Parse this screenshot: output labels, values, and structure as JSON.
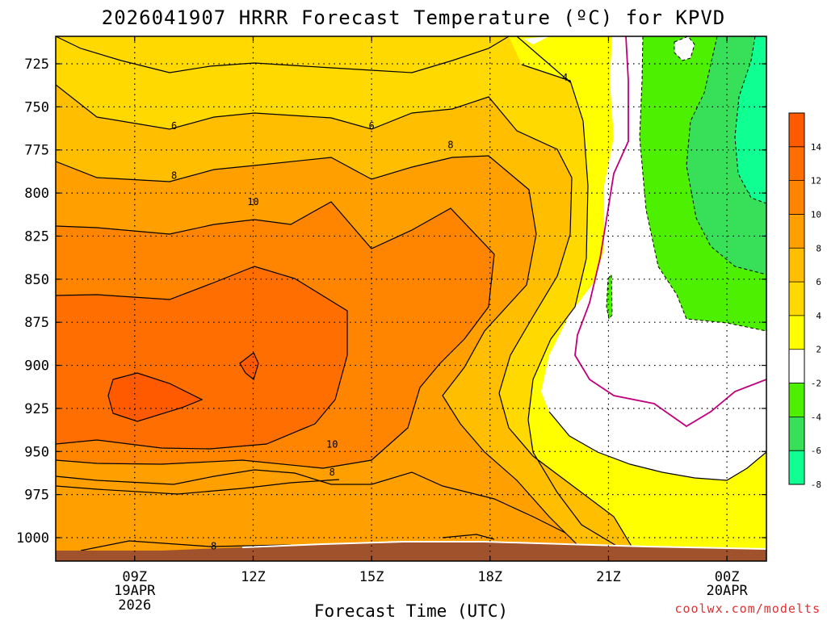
{
  "chart_data": {
    "type": "heatmap",
    "title": "2026041907 HRRR Forecast Temperature (ºC) for KPVD",
    "xlabel": "Forecast Time (UTC)",
    "ylabel": "",
    "x_ticks": [
      {
        "hour": 9,
        "label": "09Z",
        "line2": "19APR",
        "line3": "2026"
      },
      {
        "hour": 12,
        "label": "12Z"
      },
      {
        "hour": 15,
        "label": "15Z"
      },
      {
        "hour": 18,
        "label": "18Z"
      },
      {
        "hour": 21,
        "label": "21Z"
      },
      {
        "hour": 24,
        "label": "00Z",
        "line2": "20APR"
      }
    ],
    "xlim_hours": [
      7,
      25
    ],
    "y_ticks_hpa": [
      725,
      750,
      775,
      800,
      825,
      850,
      875,
      900,
      925,
      950,
      975,
      1000
    ],
    "ylim_hpa": [
      1013,
      710
    ],
    "y_axis": "pressure (hPa), inverted",
    "colorbar": {
      "tick_labels": [
        "14",
        "12",
        "10",
        "8",
        "6",
        "4",
        "2",
        "-2",
        "-4",
        "-6",
        "-8"
      ],
      "bins": [
        {
          "range": [
            14,
            16
          ],
          "color": "#ff5a00"
        },
        {
          "range": [
            12,
            14
          ],
          "color": "#ff6e00"
        },
        {
          "range": [
            10,
            12
          ],
          "color": "#ff8400"
        },
        {
          "range": [
            8,
            10
          ],
          "color": "#ffa000"
        },
        {
          "range": [
            6,
            8
          ],
          "color": "#ffbe00"
        },
        {
          "range": [
            4,
            6
          ],
          "color": "#ffd900"
        },
        {
          "range": [
            2,
            4
          ],
          "color": "#ffff00"
        },
        {
          "range": [
            -2,
            2
          ],
          "color": "#ffffff"
        },
        {
          "range": [
            -4,
            -2
          ],
          "color": "#4cf000"
        },
        {
          "range": [
            -6,
            -4
          ],
          "color": "#38e05a"
        },
        {
          "range": [
            -8,
            -6
          ],
          "color": "#10ff92"
        }
      ]
    },
    "contour_labels": [
      {
        "value": "6",
        "hour": 10,
        "hpa": 761
      },
      {
        "value": "6",
        "hour": 15,
        "hpa": 761
      },
      {
        "value": "4",
        "hour": 19.9,
        "hpa": 733
      },
      {
        "value": "8",
        "hour": 10,
        "hpa": 790
      },
      {
        "value": "8",
        "hour": 17,
        "hpa": 772
      },
      {
        "value": "10",
        "hour": 12,
        "hpa": 805
      },
      {
        "value": "10",
        "hour": 14,
        "hpa": 946
      },
      {
        "value": "8",
        "hour": 14,
        "hpa": 962
      },
      {
        "value": "8",
        "hour": 11,
        "hpa": 1005
      }
    ],
    "ground": {
      "color": "#a0522d",
      "description": "below ground surface"
    },
    "grid": true
  },
  "credit": "coolwx.com/modelts"
}
